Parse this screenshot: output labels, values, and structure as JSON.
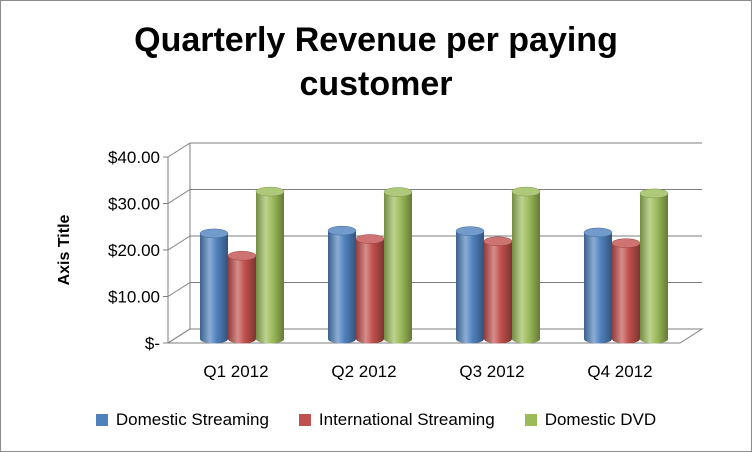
{
  "chart_data": {
    "type": "bar",
    "title_lines": [
      "Quarterly Revenue per paying",
      "customer"
    ],
    "ylabel": "Axis Title",
    "xlabel": "",
    "categories": [
      "Q1 2012",
      "Q2 2012",
      "Q3 2012",
      "Q4 2012"
    ],
    "series": [
      {
        "name": "Domestic Streaming",
        "color": "#4f81bd",
        "values": [
          22.7,
          23.3,
          23.2,
          22.9
        ]
      },
      {
        "name": "International Streaming",
        "color": "#c0504d",
        "values": [
          17.9,
          21.5,
          21.0,
          20.6
        ]
      },
      {
        "name": "Domestic DVD",
        "color": "#9bbb59",
        "values": [
          31.7,
          31.6,
          31.7,
          31.3
        ]
      }
    ],
    "ylim": [
      0,
      40
    ],
    "yticks": [
      0,
      10,
      20,
      30,
      40
    ],
    "ytick_labels": [
      "$-",
      "$10.00",
      "$20.00",
      "$30.00",
      "$40.00"
    ],
    "grid": true,
    "legend_position": "bottom",
    "style": "3d-cylinder"
  }
}
